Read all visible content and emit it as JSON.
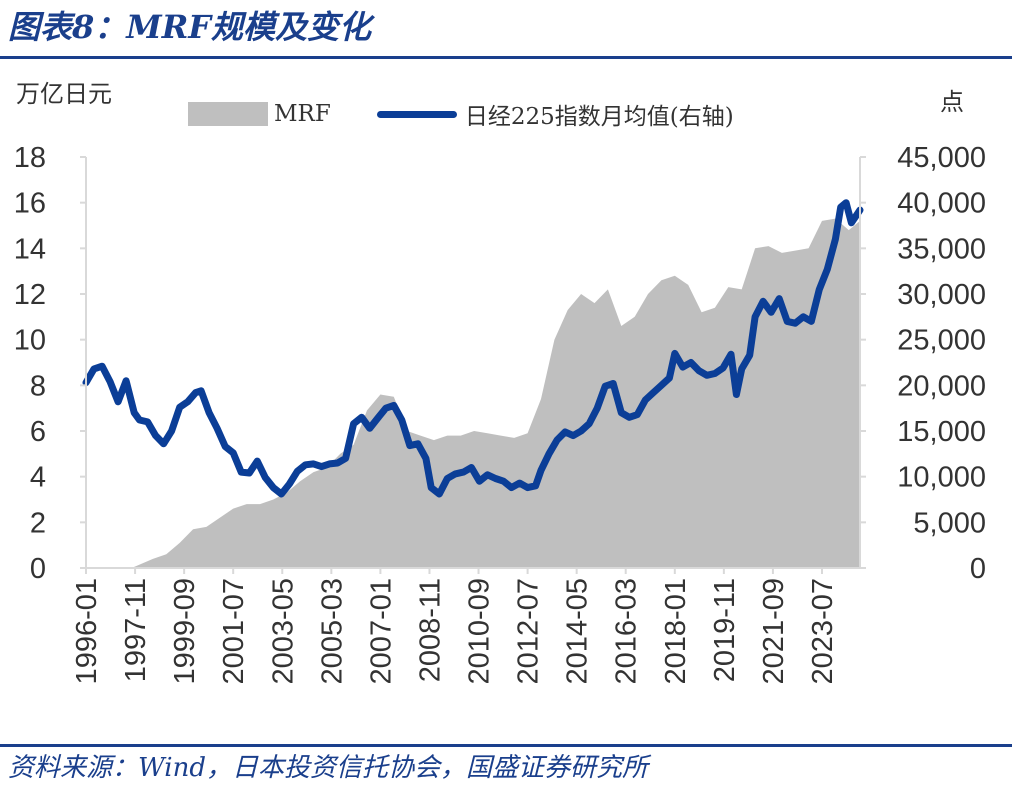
{
  "header": {
    "title": "图表8：MRF规模及变化",
    "left_unit": "万亿日元",
    "right_unit": "点"
  },
  "footer": {
    "source": "资料来源：Wind，日本投资信托协会，国盛证券研究所"
  },
  "colors": {
    "accent": "#1a3f8c",
    "area": "#bfbfbf",
    "line": "#0b3e97"
  },
  "chart_data": {
    "type": "area",
    "x_ticks": [
      "1996-01",
      "1997-11",
      "1999-09",
      "2001-07",
      "2003-05",
      "2005-03",
      "2007-01",
      "2008-11",
      "2010-09",
      "2012-07",
      "2014-05",
      "2016-03",
      "2018-01",
      "2019-11",
      "2021-09",
      "2023-07"
    ],
    "x_range": [
      1996.0,
      2024.92
    ],
    "y_left": {
      "label": "万亿日元",
      "min": 0,
      "max": 18,
      "ticks": [
        "0",
        "2",
        "4",
        "6",
        "8",
        "10",
        "12",
        "14",
        "16",
        "18"
      ]
    },
    "y_right": {
      "label": "点",
      "min": 0,
      "max": 45000,
      "ticks": [
        "0",
        "5,000",
        "10,000",
        "15,000",
        "20,000",
        "25,000",
        "30,000",
        "35,000",
        "40,000",
        "45,000"
      ]
    },
    "legend": "top",
    "grid": false,
    "series": [
      {
        "name": "MRF",
        "type": "area",
        "axis": "left",
        "x": [
          1996.0,
          1997.7,
          1997.9,
          1998.5,
          1999.0,
          1999.5,
          2000.0,
          2000.5,
          2001.0,
          2001.5,
          2002.0,
          2002.5,
          2003.0,
          2003.5,
          2004.0,
          2004.5,
          2005.0,
          2005.5,
          2006.0,
          2006.5,
          2007.0,
          2007.5,
          2008.0,
          2008.5,
          2009.0,
          2009.5,
          2010.0,
          2010.5,
          2011.0,
          2011.5,
          2012.0,
          2012.5,
          2013.0,
          2013.5,
          2014.0,
          2014.5,
          2015.0,
          2015.5,
          2016.0,
          2016.5,
          2017.0,
          2017.5,
          2018.0,
          2018.5,
          2019.0,
          2019.5,
          2020.0,
          2020.5,
          2021.0,
          2021.5,
          2022.0,
          2022.5,
          2023.0,
          2023.5,
          2024.0,
          2024.5,
          2024.92
        ],
        "values": [
          0,
          0,
          0.1,
          0.4,
          0.6,
          1.1,
          1.7,
          1.8,
          2.2,
          2.6,
          2.8,
          2.8,
          3.0,
          3.3,
          3.8,
          4.2,
          4.4,
          5.0,
          5.4,
          6.9,
          7.6,
          7.5,
          6.0,
          5.8,
          5.6,
          5.8,
          5.8,
          6.0,
          5.9,
          5.8,
          5.7,
          5.9,
          7.4,
          10.0,
          11.3,
          12.0,
          11.6,
          12.2,
          10.6,
          11.0,
          12.0,
          12.6,
          12.8,
          12.4,
          11.2,
          11.4,
          12.3,
          12.2,
          14.0,
          14.1,
          13.8,
          13.9,
          14.0,
          15.2,
          15.3,
          14.8,
          15.2
        ]
      },
      {
        "name": "日经225指数月均值(右轴)",
        "type": "line",
        "axis": "right",
        "x": [
          1996.0,
          1996.3,
          1996.6,
          1996.9,
          1997.2,
          1997.5,
          1997.8,
          1998.0,
          1998.3,
          1998.6,
          1998.9,
          1999.2,
          1999.5,
          1999.8,
          2000.1,
          2000.3,
          2000.6,
          2000.9,
          2001.2,
          2001.5,
          2001.8,
          2002.1,
          2002.4,
          2002.7,
          2003.0,
          2003.3,
          2003.6,
          2003.9,
          2004.2,
          2004.5,
          2004.8,
          2005.1,
          2005.4,
          2005.7,
          2006.0,
          2006.3,
          2006.6,
          2006.9,
          2007.2,
          2007.5,
          2007.8,
          2008.1,
          2008.4,
          2008.7,
          2008.9,
          2009.2,
          2009.5,
          2009.8,
          2010.1,
          2010.4,
          2010.7,
          2011.0,
          2011.3,
          2011.6,
          2011.9,
          2012.2,
          2012.5,
          2012.8,
          2013.0,
          2013.3,
          2013.6,
          2013.9,
          2014.2,
          2014.5,
          2014.8,
          2015.1,
          2015.4,
          2015.7,
          2016.0,
          2016.3,
          2016.6,
          2016.9,
          2017.2,
          2017.5,
          2017.8,
          2018.0,
          2018.3,
          2018.6,
          2018.9,
          2019.2,
          2019.5,
          2019.8,
          2020.1,
          2020.3,
          2020.5,
          2020.8,
          2021.0,
          2021.3,
          2021.6,
          2021.9,
          2022.2,
          2022.5,
          2022.8,
          2023.1,
          2023.4,
          2023.7,
          2024.0,
          2024.2,
          2024.4,
          2024.6,
          2024.92
        ],
        "values": [
          20300,
          21800,
          22100,
          20400,
          18200,
          20500,
          17000,
          16200,
          16000,
          14500,
          13600,
          15000,
          17600,
          18200,
          19200,
          19400,
          17000,
          15300,
          13300,
          12600,
          10500,
          10400,
          11700,
          9900,
          8800,
          8100,
          9200,
          10600,
          11300,
          11400,
          11100,
          11400,
          11500,
          12000,
          15800,
          16500,
          15300,
          16400,
          17500,
          17800,
          16200,
          13400,
          13600,
          12000,
          8800,
          8100,
          9800,
          10300,
          10500,
          11000,
          9500,
          10200,
          9800,
          9500,
          8800,
          9300,
          8800,
          9000,
          10700,
          12500,
          14000,
          14900,
          14500,
          15000,
          15800,
          17500,
          19900,
          20200,
          17000,
          16500,
          16800,
          18400,
          19200,
          20000,
          20800,
          23500,
          22000,
          22500,
          21600,
          21100,
          21300,
          21900,
          23400,
          19000,
          21800,
          23300,
          27500,
          29200,
          28000,
          29500,
          27000,
          26800,
          27500,
          27000,
          30500,
          32700,
          36000,
          39500,
          40000,
          37800,
          39200
        ]
      }
    ]
  }
}
